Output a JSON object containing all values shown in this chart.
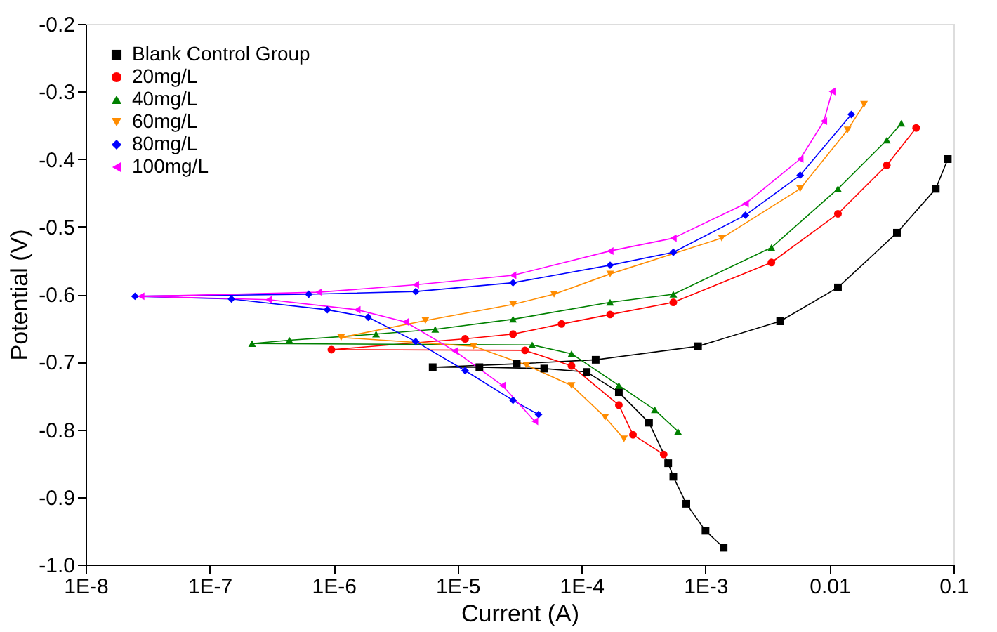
{
  "chart_data": {
    "type": "line",
    "xlabel": "Current (A)",
    "ylabel": "Potential (V)",
    "log": "x",
    "xlim": [
      1e-08,
      0.1
    ],
    "xticks": [
      {
        "value": 1e-08,
        "label": "1E-8"
      },
      {
        "value": 1e-07,
        "label": "1E-7"
      },
      {
        "value": 1e-06,
        "label": "1E-6"
      },
      {
        "value": 1e-05,
        "label": "1E-5"
      },
      {
        "value": 0.0001,
        "label": "1E-4"
      },
      {
        "value": 0.001,
        "label": "1E-3"
      },
      0.01,
      0.1
    ],
    "ylim": [
      -1.0,
      -0.2
    ],
    "yticks": [
      {
        "value": -1.0,
        "label": "-1.0"
      },
      -0.9,
      -0.8,
      -0.7,
      -0.6,
      -0.5,
      -0.4,
      -0.3,
      -0.2
    ],
    "grid": false,
    "legend": "top left",
    "line_style": "solid",
    "series": [
      {
        "name": "Blank Control Group",
        "color": "#000000",
        "marker": "square",
        "x": [
          0.0014,
          0.001,
          0.0007,
          0.00055,
          0.0005,
          0.00035,
          0.0002,
          0.00011,
          5e-05,
          1.5e-05,
          6.3e-06,
          3e-05,
          0.00013,
          0.00087,
          0.004,
          0.0117,
          0.035,
          0.072,
          0.09
        ],
        "values": [
          -0.975,
          -0.95,
          -0.91,
          -0.87,
          -0.85,
          -0.79,
          -0.745,
          -0.715,
          -0.71,
          -0.708,
          -0.708,
          -0.703,
          -0.697,
          -0.677,
          -0.64,
          -0.59,
          -0.509,
          -0.444,
          -0.4
        ]
      },
      {
        "name": "20mg/L",
        "color": "#ff0000",
        "marker": "circle",
        "x": [
          0.00046,
          0.00026,
          0.0002,
          8.3e-05,
          3.5e-05,
          9.6e-07,
          1.15e-05,
          2.8e-05,
          6.9e-05,
          0.00017,
          0.00055,
          0.0034,
          0.0117,
          0.029,
          0.05
        ],
        "values": [
          -0.837,
          -0.808,
          -0.764,
          -0.706,
          -0.683,
          -0.682,
          -0.666,
          -0.659,
          -0.644,
          -0.63,
          -0.612,
          -0.553,
          -0.481,
          -0.409,
          -0.354
        ]
      },
      {
        "name": "40mg/L",
        "color": "#008000",
        "marker": "triangle",
        "x": [
          0.0006,
          0.00039,
          0.0002,
          8.3e-05,
          4e-05,
          2.2e-07,
          4.4e-07,
          2.2e-06,
          6.6e-06,
          2.8e-05,
          0.00017,
          0.00055,
          0.0034,
          0.0117,
          0.029,
          0.038
        ],
        "values": [
          -0.803,
          -0.771,
          -0.735,
          -0.688,
          -0.675,
          -0.673,
          -0.668,
          -0.659,
          -0.652,
          -0.637,
          -0.612,
          -0.6,
          -0.531,
          -0.444,
          -0.372,
          -0.347
        ]
      },
      {
        "name": "60mg/L",
        "color": "#ff8c00",
        "marker": "triangle-down",
        "x": [
          0.00022,
          0.000155,
          8.3e-05,
          3.6e-05,
          1.35e-05,
          1.15e-06,
          5.5e-06,
          2.8e-05,
          6e-05,
          0.00017,
          0.00135,
          0.0058,
          0.014,
          0.019
        ],
        "values": [
          -0.814,
          -0.782,
          -0.735,
          -0.705,
          -0.677,
          -0.664,
          -0.639,
          -0.615,
          -0.6,
          -0.57,
          -0.517,
          -0.444,
          -0.357,
          -0.319
        ]
      },
      {
        "name": "80mg/L",
        "color": "#0000ff",
        "marker": "diamond",
        "x": [
          4.5e-05,
          2.8e-05,
          1.15e-05,
          4.6e-06,
          1.9e-06,
          8.9e-07,
          1.5e-07,
          2.5e-08,
          6.3e-07,
          4.6e-06,
          2.8e-05,
          0.00017,
          0.00055,
          0.0021,
          0.0058,
          0.015
        ],
        "values": [
          -0.778,
          -0.757,
          -0.713,
          -0.67,
          -0.634,
          -0.623,
          -0.607,
          -0.603,
          -0.6,
          -0.596,
          -0.583,
          -0.557,
          -0.538,
          -0.483,
          -0.424,
          -0.334
        ]
      },
      {
        "name": "100mg/L",
        "color": "#ff00ff",
        "marker": "triangle-left",
        "x": [
          4.2e-05,
          2.3e-05,
          9.5e-06,
          3.8e-06,
          1.55e-06,
          3e-07,
          2.8e-08,
          7.6e-07,
          4.6e-06,
          2.8e-05,
          0.00017,
          0.00055,
          0.0021,
          0.0058,
          0.009,
          0.0105
        ],
        "values": [
          -0.788,
          -0.735,
          -0.684,
          -0.641,
          -0.623,
          -0.608,
          -0.603,
          -0.597,
          -0.586,
          -0.572,
          -0.536,
          -0.517,
          -0.466,
          -0.4,
          -0.344,
          -0.3
        ]
      }
    ]
  }
}
